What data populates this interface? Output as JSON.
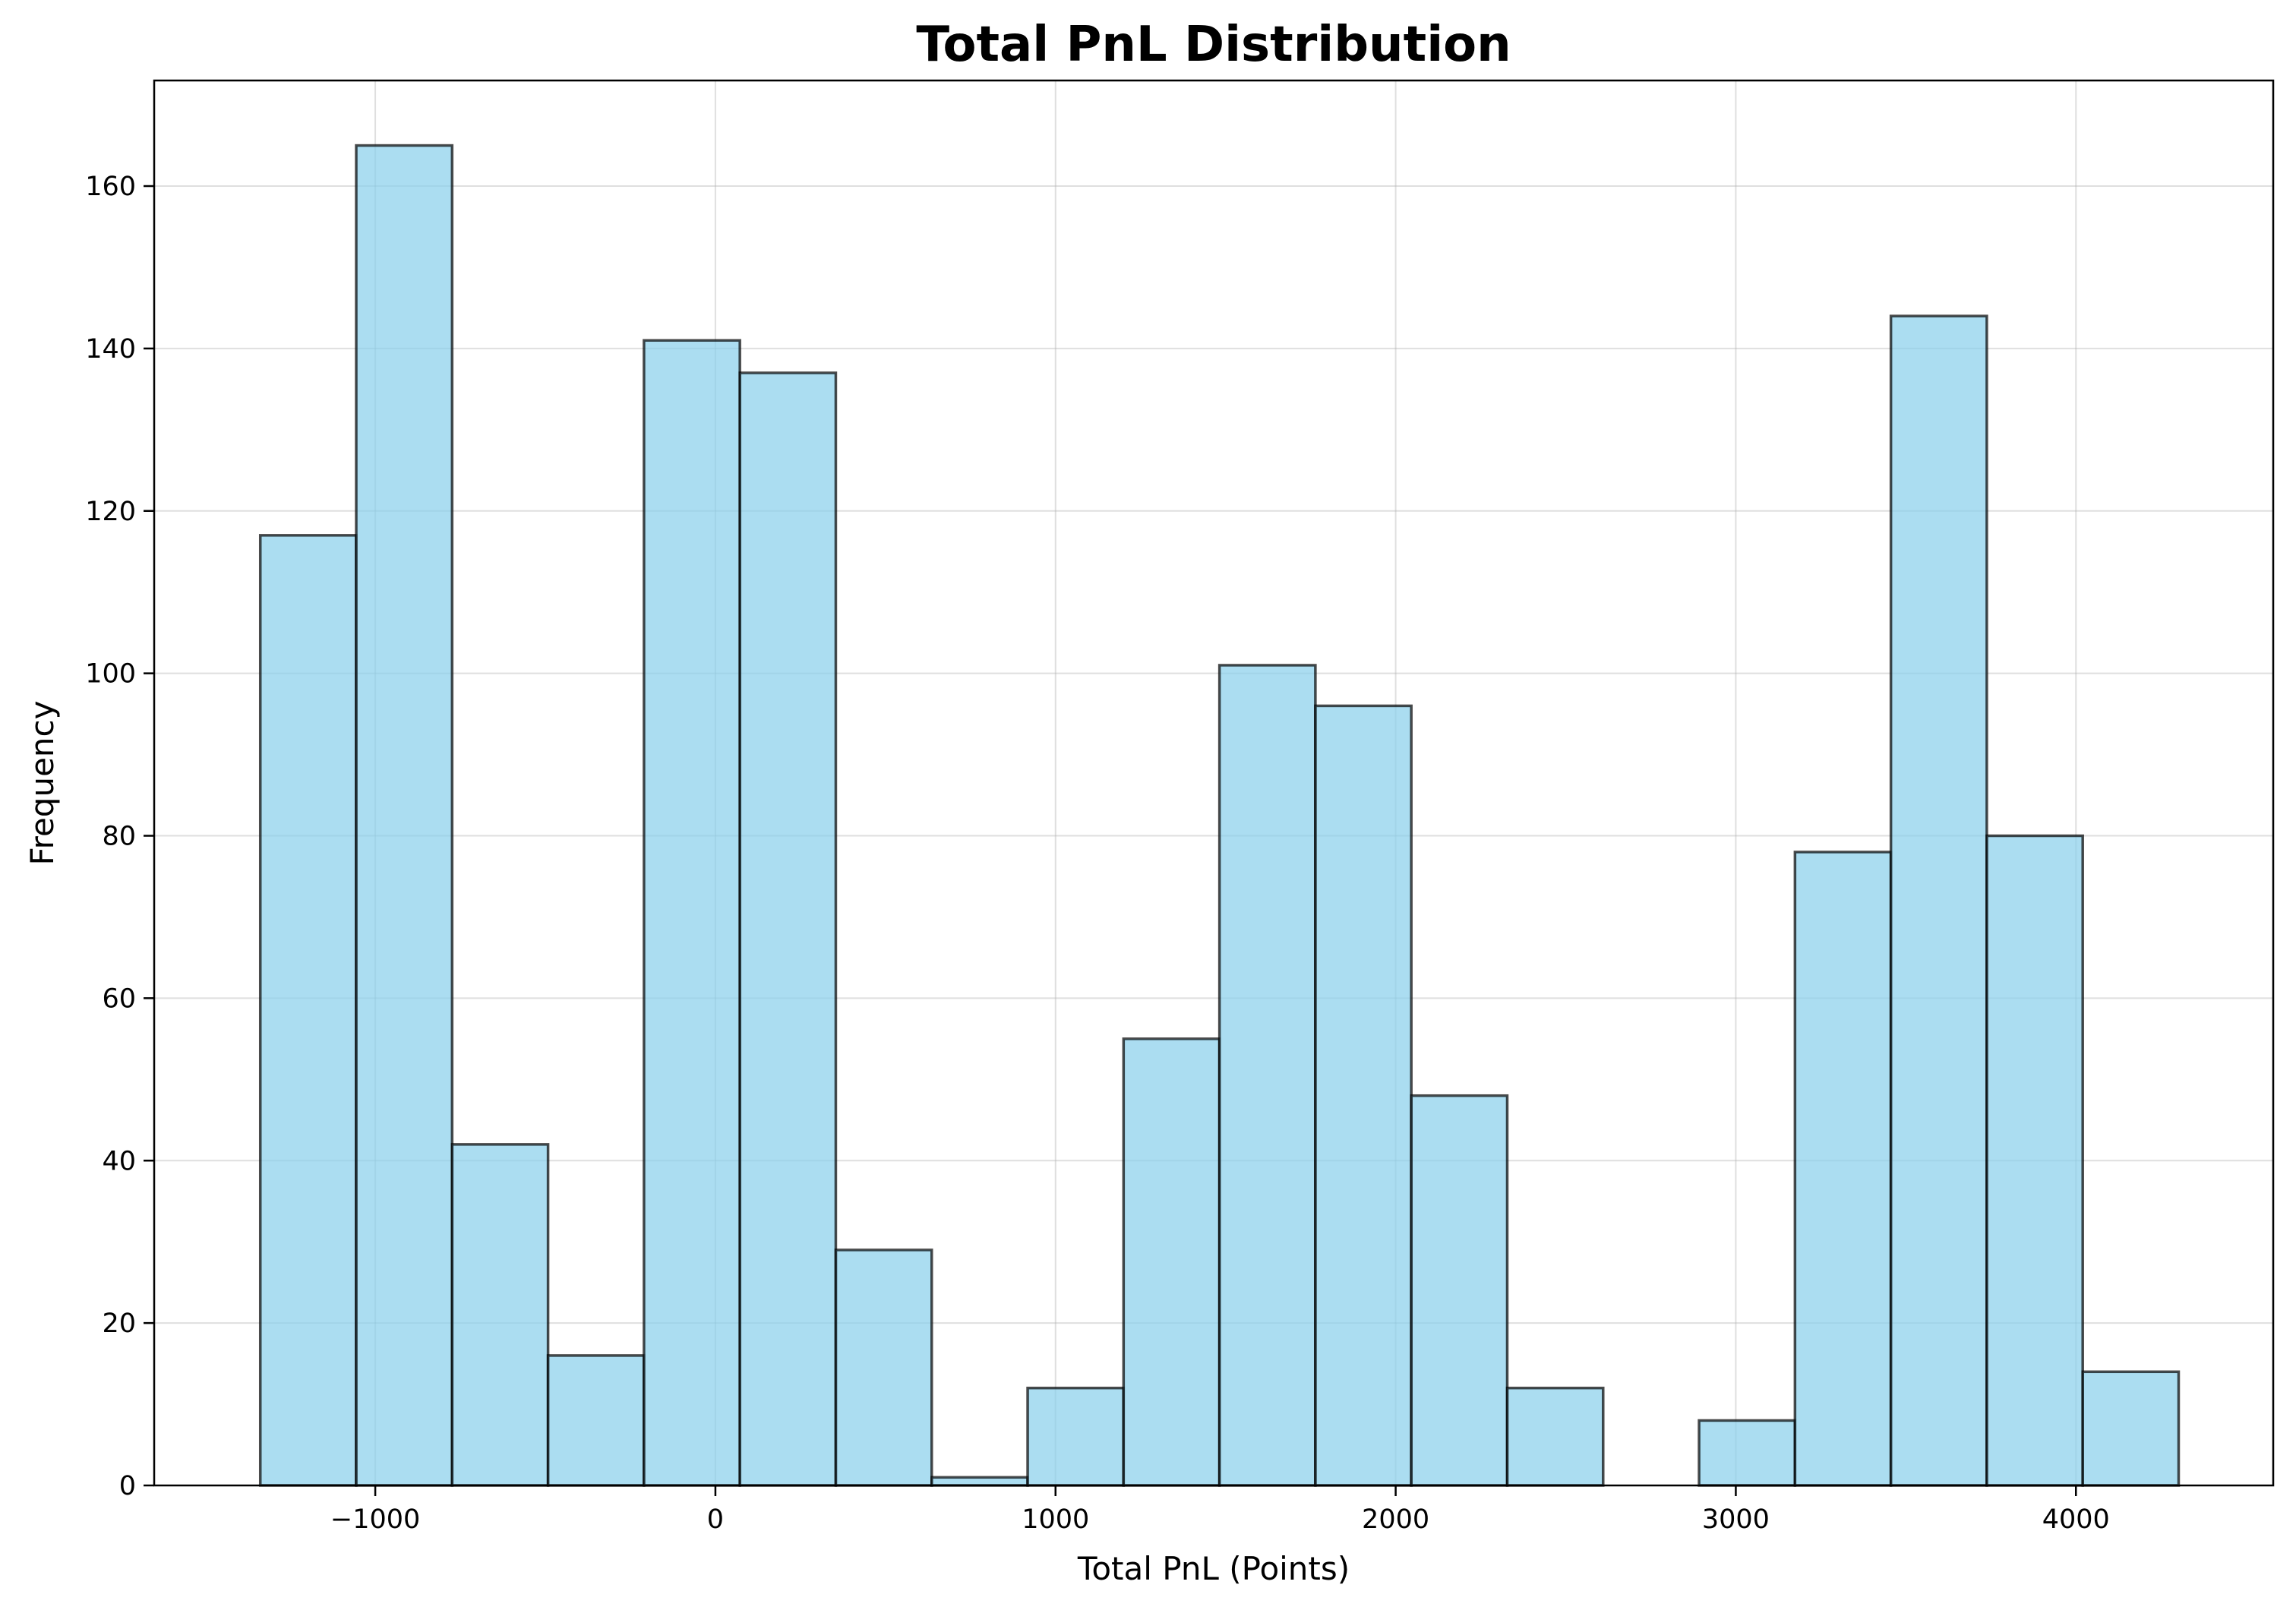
{
  "chart_data": {
    "type": "bar",
    "title": "Total PnL Distribution",
    "xlabel": "Total PnL (Points)",
    "ylabel": "Frequency",
    "bin_edges": [
      -1338,
      -1056,
      -774,
      -492,
      -210,
      72,
      354,
      636,
      918,
      1200,
      1482,
      1764,
      2046,
      2328,
      2610,
      2892,
      3174,
      3456,
      3738,
      4020,
      4302
    ],
    "values": [
      117,
      165,
      42,
      16,
      141,
      137,
      29,
      1,
      12,
      55,
      101,
      96,
      48,
      12,
      0,
      8,
      78,
      144,
      80,
      14
    ],
    "xlim": [
      -1650,
      4580
    ],
    "ylim": [
      0,
      173
    ],
    "xticks": [
      -1000,
      0,
      1000,
      2000,
      3000,
      4000
    ],
    "xtick_labels": [
      "−1000",
      "0",
      "1000",
      "2000",
      "3000",
      "4000"
    ],
    "yticks": [
      0,
      20,
      40,
      60,
      80,
      100,
      120,
      140,
      160
    ],
    "ytick_labels": [
      "0",
      "20",
      "40",
      "60",
      "80",
      "100",
      "120",
      "140",
      "160"
    ],
    "grid": true,
    "colors": {
      "bar_fill": "#87ceeb",
      "bar_fill_opacity": 0.7,
      "bar_edge": "#000000",
      "bar_edge_opacity": 0.7
    }
  }
}
